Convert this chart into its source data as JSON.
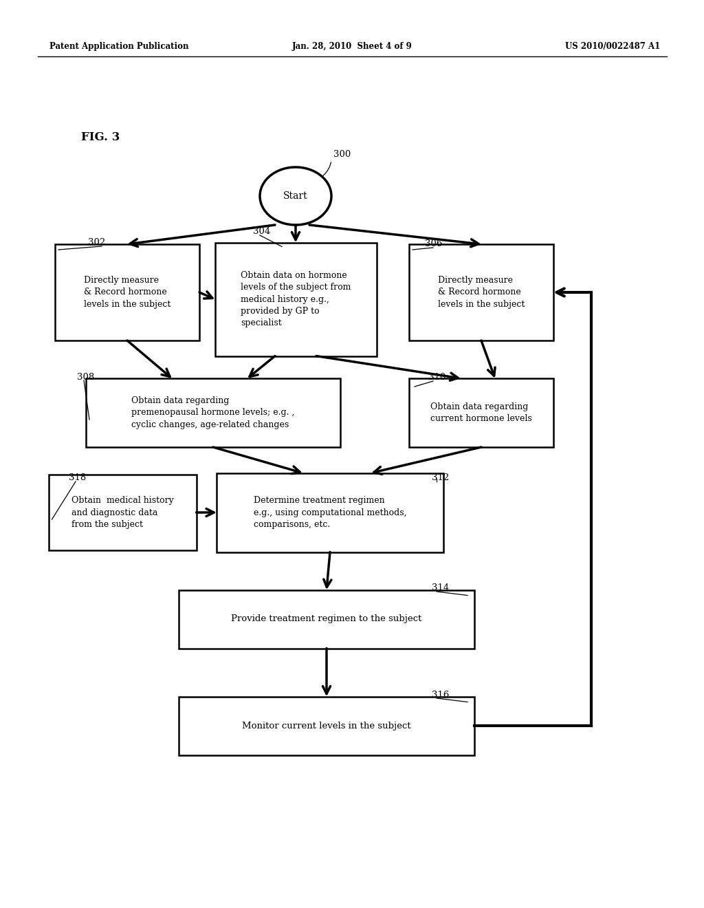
{
  "header_left": "Patent Application Publication",
  "header_center": "Jan. 28, 2010  Sheet 4 of 9",
  "header_right": "US 2010/0022487 A1",
  "fig_label": "FIG. 3",
  "start_label": "Start",
  "node_300": "300",
  "node_302": "302",
  "node_304": "304",
  "node_306": "306",
  "node_308": "308",
  "node_310": "310",
  "node_312": "312",
  "node_314": "314",
  "node_316": "316",
  "node_318": "318",
  "box302_text": "Directly measure\n& Record hormone\nlevels in the subject",
  "box304_text": "Obtain data on hormone\nlevels of the subject from\nmedical history e.g.,\nprovided by GP to\nspecialist",
  "box306_text": "Directly measure\n& Record hormone\nlevels in the subject",
  "box308_text": "Obtain data regarding\npremenopausal hormone levels; e.g. ,\ncyclic changes, age-related changes",
  "box310_text": "Obtain data regarding\ncurrent hormone levels",
  "box312_text": "Determine treatment regimen\ne.g., using computational methods,\ncomparisons, etc.",
  "box318_text": "Obtain  medical history\nand diagnostic data\nfrom the subject",
  "box314_text": "Provide treatment regimen to the subject",
  "box316_text": "Monitor current levels in the subject",
  "bg_color": "#ffffff",
  "line_color": "#000000",
  "text_color": "#000000"
}
